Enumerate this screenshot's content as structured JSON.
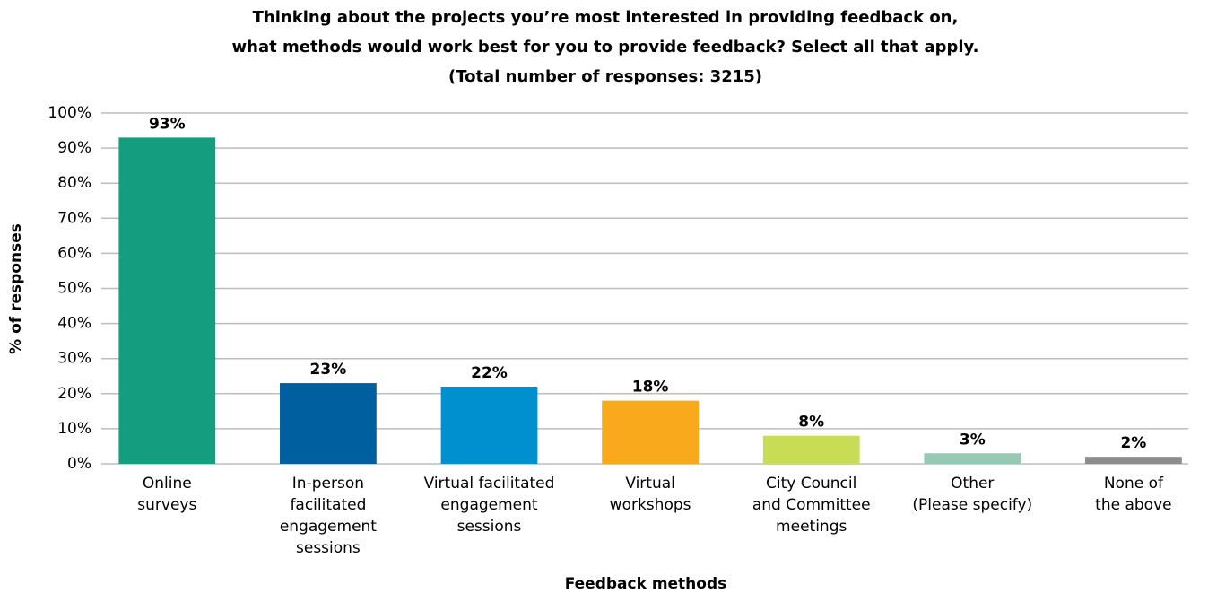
{
  "chart_data": {
    "type": "bar",
    "title": [
      "Thinking about the projects you’re most interested in providing feedback on,",
      "what methods would work best for you to provide feedback? Select all that apply.",
      "(Total number of responses: 3215)"
    ],
    "x_label": "Feedback methods",
    "y_label": "% of responses",
    "categories": [
      [
        "Online",
        "surveys"
      ],
      [
        "In-person",
        "facilitated",
        "engagement",
        "sessions"
      ],
      [
        "Virtual facilitated",
        "engagement",
        "sessions"
      ],
      [
        "Virtual",
        "workshops"
      ],
      [
        "City Council",
        "and Committee",
        "meetings"
      ],
      [
        "Other",
        "(Please specify)"
      ],
      [
        "None of",
        "the above"
      ]
    ],
    "values": [
      93,
      23,
      22,
      18,
      8,
      3,
      2
    ],
    "value_labels": [
      "93%",
      "23%",
      "22%",
      "18%",
      "8%",
      "3%",
      "2%"
    ],
    "colors": [
      "#149e7f",
      "#005f9e",
      "#0090d0",
      "#f9aa1c",
      "#c8dc55",
      "#96c9b4",
      "#8c8c8c"
    ],
    "ylim": [
      0,
      100
    ],
    "yticks": [
      {
        "value": 0,
        "label": "0%"
      },
      {
        "value": 10,
        "label": "10%"
      },
      {
        "value": 20,
        "label": "20%"
      },
      {
        "value": 30,
        "label": "30%"
      },
      {
        "value": 40,
        "label": "40%"
      },
      {
        "value": 50,
        "label": "50%"
      },
      {
        "value": 60,
        "label": "60%"
      },
      {
        "value": 70,
        "label": "70%"
      },
      {
        "value": 80,
        "label": "80%"
      },
      {
        "value": 90,
        "label": "90%"
      },
      {
        "value": 100,
        "label": "100%"
      }
    ],
    "grid": true
  }
}
